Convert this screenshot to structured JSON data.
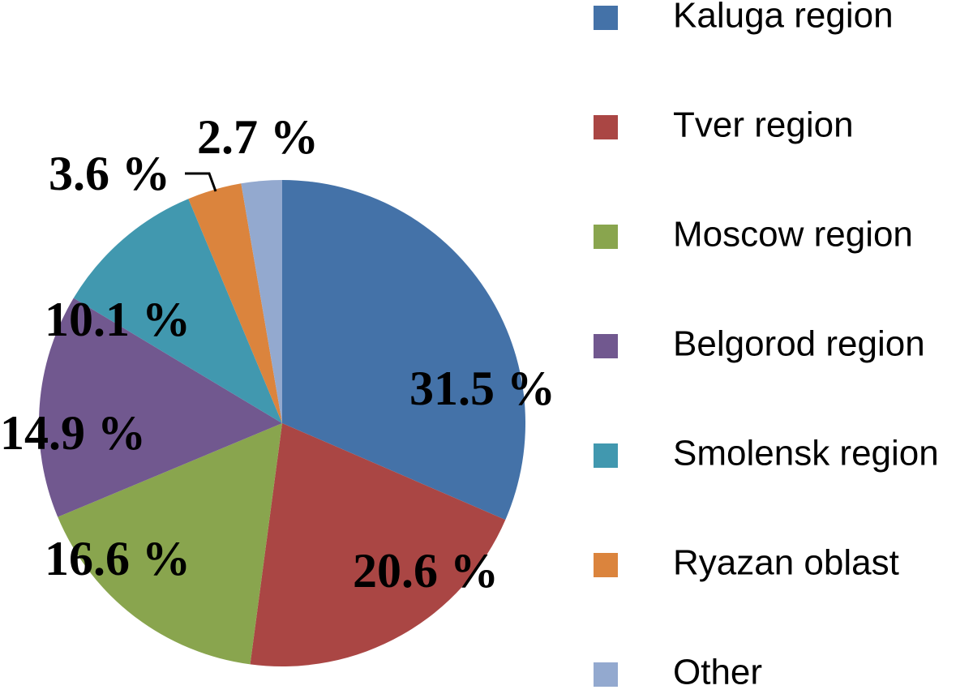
{
  "chart_data": {
    "type": "pie",
    "slices": [
      {
        "name": "Kaluga region",
        "value": 31.5,
        "label": "31.5 %",
        "color": "#4472a8"
      },
      {
        "name": "Tver region",
        "value": 20.6,
        "label": "20.6 %",
        "color": "#aa4644"
      },
      {
        "name": "Moscow region",
        "value": 16.6,
        "label": "16.6 %",
        "color": "#89a54e"
      },
      {
        "name": "Belgorod region",
        "value": 14.9,
        "label": "14.9 %",
        "color": "#71588f"
      },
      {
        "name": "Smolensk region",
        "value": 10.1,
        "label": "10.1 %",
        "color": "#4198af"
      },
      {
        "name": "Ryazan oblast",
        "value": 3.6,
        "label": "3.6 %",
        "color": "#db843d"
      },
      {
        "name": "Other",
        "value": 2.7,
        "label": "2.7 %",
        "color": "#93a9cf"
      }
    ],
    "legend_position": "right",
    "start": "12 o'clock",
    "direction": "clockwise"
  }
}
